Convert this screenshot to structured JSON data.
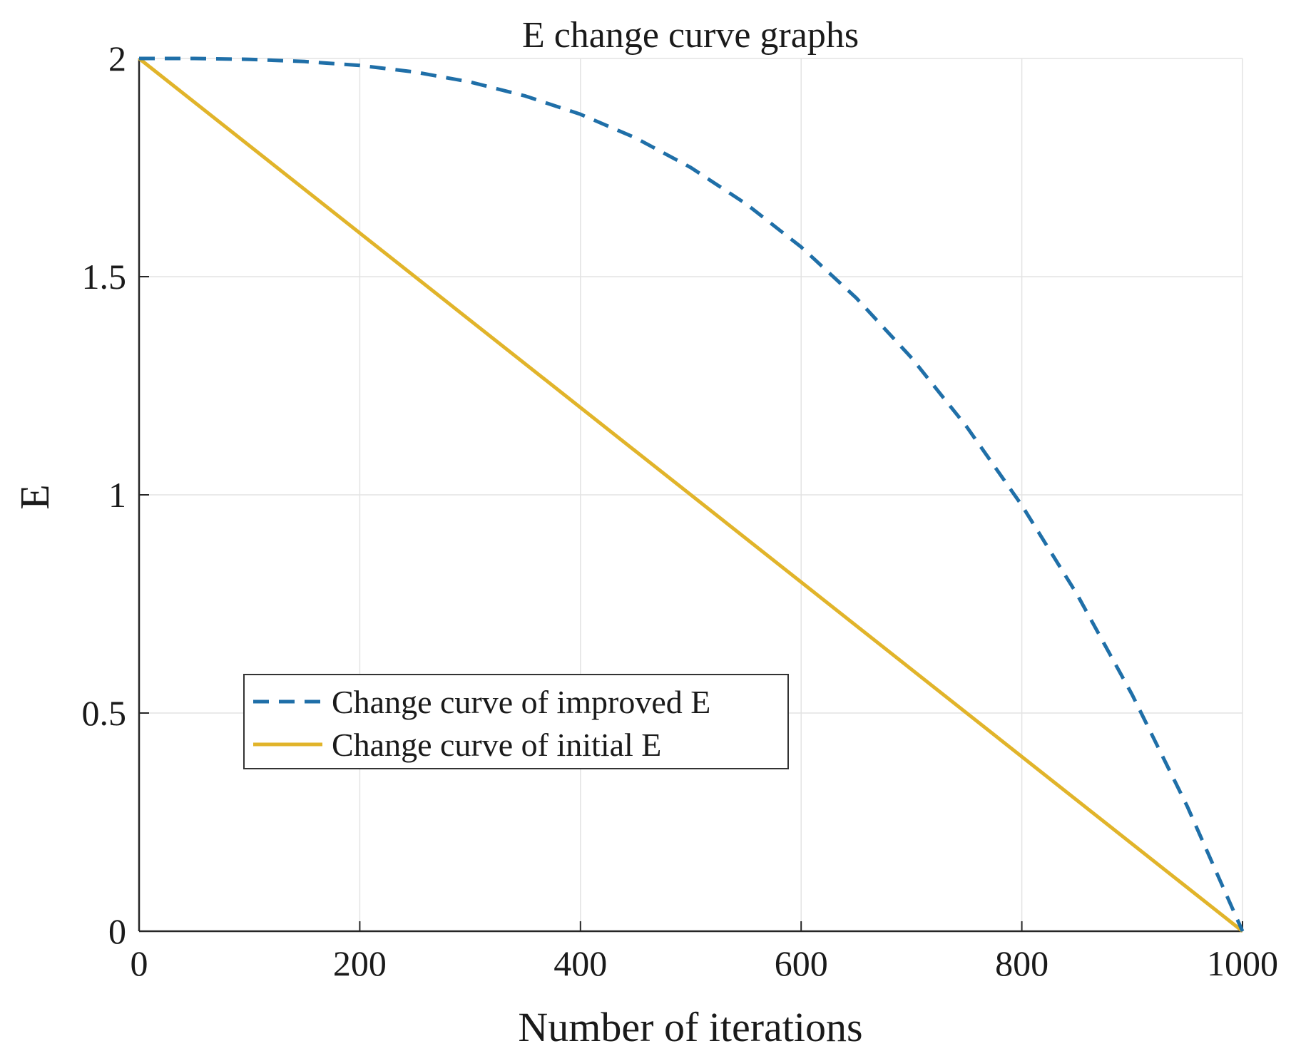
{
  "chart_data": {
    "type": "line",
    "title": "E change curve graphs",
    "xlabel": "Number of iterations",
    "ylabel": "E",
    "xlim": [
      0,
      1000
    ],
    "ylim": [
      0,
      2
    ],
    "xticks": [
      0,
      200,
      400,
      600,
      800,
      1000
    ],
    "xtick_labels": [
      "0",
      "200",
      "400",
      "600",
      "800",
      "1000"
    ],
    "yticks": [
      0,
      0.5,
      1,
      1.5,
      2
    ],
    "ytick_labels": [
      "0",
      "0.5",
      "1",
      "1.5",
      "2"
    ],
    "grid": true,
    "legend_position": "center-left",
    "series": [
      {
        "name": "Change curve of improved E",
        "style": "dashed",
        "color": "#1f6fa8",
        "x": [
          0,
          50,
          100,
          150,
          200,
          250,
          300,
          350,
          400,
          450,
          500,
          550,
          600,
          650,
          700,
          750,
          800,
          850,
          900,
          950,
          1000
        ],
        "y": [
          2.0,
          2.0,
          1.998,
          1.993,
          1.984,
          1.969,
          1.946,
          1.914,
          1.872,
          1.818,
          1.75,
          1.667,
          1.568,
          1.451,
          1.314,
          1.156,
          0.976,
          0.772,
          0.542,
          0.286,
          0.0
        ]
      },
      {
        "name": "Change curve of initial E",
        "style": "solid",
        "color": "#e1b42a",
        "x": [
          0,
          1000
        ],
        "y": [
          2.0,
          0.0
        ]
      }
    ]
  }
}
